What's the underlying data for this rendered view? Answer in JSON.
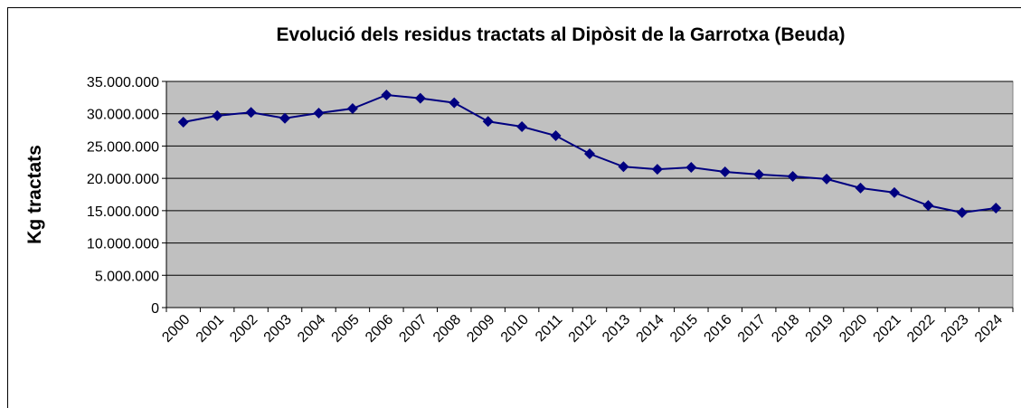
{
  "chart_data": {
    "type": "line",
    "title": "Evolució dels residus tractats al Dipòsit de la Garrotxa (Beuda)",
    "y_label": "Kg tractats",
    "categories": [
      "2000",
      "2001",
      "2002",
      "2003",
      "2004",
      "2005",
      "2006",
      "2007",
      "2008",
      "2009",
      "2010",
      "2011",
      "2012",
      "2013",
      "2014",
      "2015",
      "2016",
      "2017",
      "2018",
      "2019",
      "2020",
      "2021",
      "2022",
      "2023",
      "2024"
    ],
    "series": [
      {
        "name": "Kg tractats",
        "color": "#000080",
        "values": [
          28700000,
          29700000,
          30200000,
          29300000,
          30100000,
          30800000,
          32900000,
          32400000,
          31700000,
          28800000,
          28000000,
          26600000,
          23800000,
          21800000,
          21400000,
          21700000,
          21000000,
          20600000,
          20300000,
          19900000,
          18500000,
          17800000,
          15800000,
          14700000,
          15400000
        ]
      }
    ],
    "ylim": [
      0,
      35000000
    ],
    "yticks": [
      0,
      {
        "value": 5000000,
        "label": "5.000.000"
      },
      {
        "value": 10000000,
        "label": "10.000.000"
      },
      {
        "value": 15000000,
        "label": "15.000.000"
      },
      {
        "value": 20000000,
        "label": "20.000.000"
      },
      {
        "value": 25000000,
        "label": "25.000.000"
      },
      {
        "value": 30000000,
        "label": "30.000.000"
      },
      {
        "value": 35000000,
        "label": "35.000.000"
      }
    ],
    "grid": true,
    "plot_background": "#c0c0c0"
  }
}
